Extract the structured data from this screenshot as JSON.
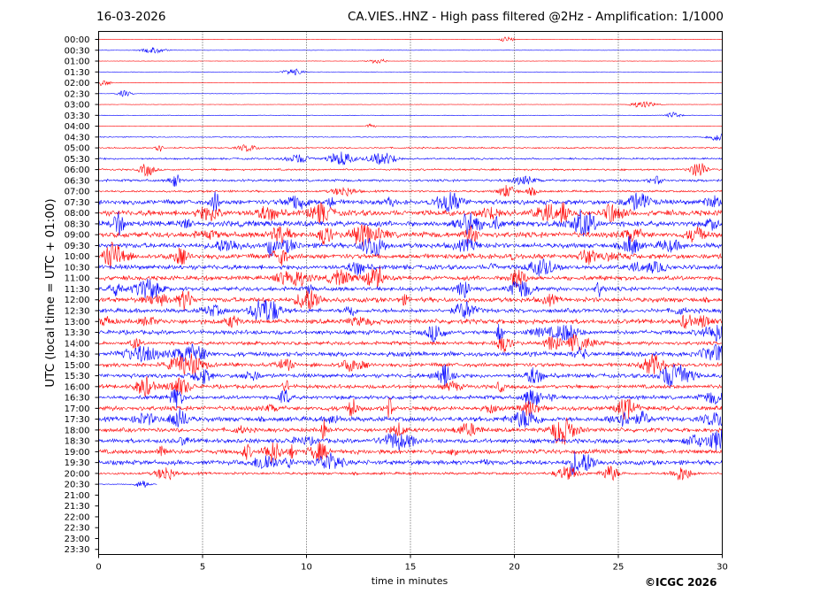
{
  "header": {
    "date": "16-03-2026",
    "title": "CA.VIES..HNZ - High pass filtered @2Hz - Amplification: 1/1000"
  },
  "footer": {
    "copyright": "©ICGC 2026"
  },
  "chart_data": {
    "type": "line",
    "title": "CA.VIES..HNZ - High pass filtered @2Hz - Amplification: 1/1000",
    "xlabel": "time in minutes",
    "ylabel": "UTC (local time = UTC + 01:00)",
    "xlim": [
      0,
      30
    ],
    "x_ticks": [
      0,
      5,
      10,
      15,
      20,
      25,
      30
    ],
    "grid": "vertical dotted at x ticks",
    "series_colors": [
      "#ff0000",
      "#0000ff"
    ],
    "row_labels": [
      "00:00",
      "00:30",
      "01:00",
      "01:30",
      "02:00",
      "02:30",
      "03:00",
      "03:30",
      "04:00",
      "04:30",
      "05:00",
      "05:30",
      "06:00",
      "06:30",
      "07:00",
      "07:30",
      "08:00",
      "08:30",
      "09:00",
      "09:30",
      "10:00",
      "10:30",
      "11:00",
      "11:30",
      "12:00",
      "12:30",
      "13:00",
      "13:30",
      "14:00",
      "14:30",
      "15:00",
      "15:30",
      "16:00",
      "16:30",
      "17:00",
      "17:30",
      "18:00",
      "18:30",
      "19:00",
      "19:30",
      "20:00",
      "20:30",
      "21:00",
      "21:30",
      "22:00",
      "22:30",
      "23:00",
      "23:30"
    ],
    "rows_with_trace": 42,
    "last_trace_end_minute": 2.8,
    "row_noise_level": [
      0.2,
      0.2,
      0.2,
      0.2,
      0.2,
      0.2,
      0.2,
      0.3,
      0.3,
      0.5,
      0.8,
      1.0,
      1.0,
      1.3,
      1.1,
      2.6,
      3.0,
      3.0,
      3.0,
      2.7,
      2.7,
      2.5,
      2.4,
      2.3,
      2.6,
      2.3,
      2.5,
      2.3,
      2.0,
      2.5,
      2.2,
      2.2,
      2.1,
      2.1,
      2.5,
      2.6,
      2.2,
      2.4,
      2.4,
      2.5,
      1.4,
      0.5
    ]
  }
}
